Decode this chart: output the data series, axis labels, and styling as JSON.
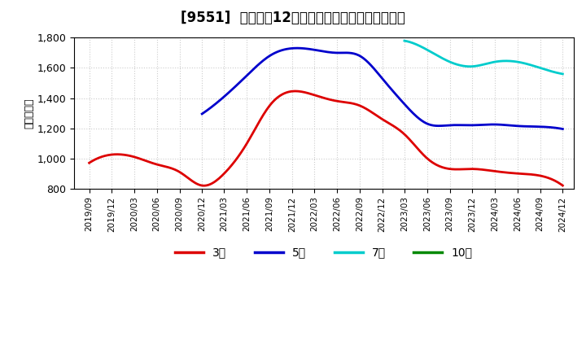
{
  "title": "[9551]  経常利益12か月移動合計の標準偏差の推移",
  "ylabel": "（百万円）",
  "ylim": [
    800,
    1800
  ],
  "yticks": [
    800,
    1000,
    1200,
    1400,
    1600,
    1800
  ],
  "ytick_labels": [
    "800",
    "1,000",
    "1,200",
    "1,400",
    "1,600",
    "1,800"
  ],
  "background_color": "#ffffff",
  "plot_bg_color": "#ffffff",
  "grid_color": "#cccccc",
  "series": {
    "3year": {
      "color": "#dd0000",
      "label": "3年",
      "dates": [
        "2019/09",
        "2019/12",
        "2020/03",
        "2020/06",
        "2020/09",
        "2020/12",
        "2021/03",
        "2021/06",
        "2021/09",
        "2021/12",
        "2022/03",
        "2022/06",
        "2022/09",
        "2022/12",
        "2023/03",
        "2023/06",
        "2023/09",
        "2023/12",
        "2024/03",
        "2024/06",
        "2024/09",
        "2024/12"
      ],
      "values": [
        970,
        1025,
        1010,
        960,
        910,
        820,
        900,
        1100,
        1350,
        1445,
        1420,
        1380,
        1350,
        1260,
        1160,
        1000,
        930,
        930,
        915,
        900,
        885,
        820
      ]
    },
    "5year": {
      "color": "#0000cc",
      "label": "5年",
      "dates": [
        "2020/12",
        "2021/03",
        "2021/06",
        "2021/09",
        "2021/12",
        "2022/03",
        "2022/06",
        "2022/09",
        "2022/12",
        "2023/03",
        "2023/06",
        "2023/09",
        "2023/12",
        "2024/03",
        "2024/06",
        "2024/09",
        "2024/12"
      ],
      "values": [
        1295,
        1410,
        1550,
        1680,
        1730,
        1720,
        1700,
        1680,
        1530,
        1360,
        1230,
        1220,
        1220,
        1225,
        1215,
        1210,
        1195
      ]
    },
    "7year": {
      "color": "#00cccc",
      "label": "7年",
      "dates": [
        "2023/03",
        "2023/06",
        "2023/09",
        "2023/12",
        "2024/03",
        "2024/06",
        "2024/09",
        "2024/12"
      ],
      "values": [
        1780,
        1720,
        1640,
        1610,
        1640,
        1640,
        1600,
        1560
      ]
    },
    "10year": {
      "color": "#008800",
      "label": "10年",
      "dates": [],
      "values": []
    }
  },
  "xtick_dates": [
    "2019/09",
    "2019/12",
    "2020/03",
    "2020/06",
    "2020/09",
    "2020/12",
    "2021/03",
    "2021/06",
    "2021/09",
    "2021/12",
    "2022/03",
    "2022/06",
    "2022/09",
    "2022/12",
    "2023/03",
    "2023/06",
    "2023/09",
    "2023/12",
    "2024/03",
    "2024/06",
    "2024/09",
    "2024/12"
  ],
  "legend_items": [
    {
      "label": "3年",
      "color": "#dd0000"
    },
    {
      "label": "5年",
      "color": "#0000cc"
    },
    {
      "label": "7年",
      "color": "#00cccc"
    },
    {
      "label": "10年",
      "color": "#008800"
    }
  ]
}
